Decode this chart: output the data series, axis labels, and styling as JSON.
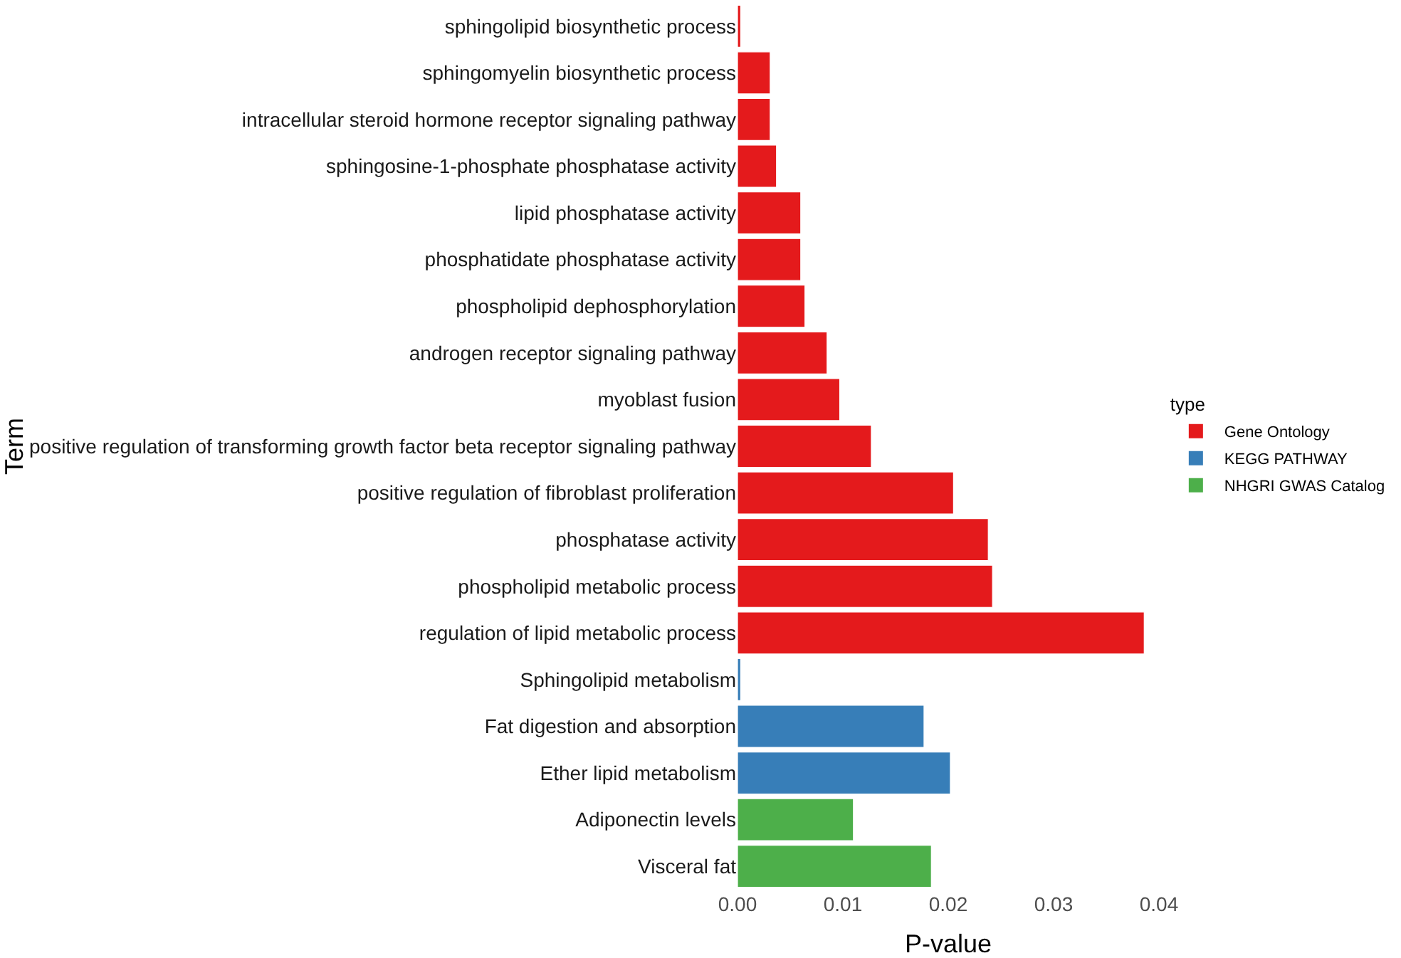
{
  "chart_data": {
    "type": "bar",
    "orientation": "horizontal",
    "xlabel": "P-value",
    "ylabel": "Term",
    "legend_title": "type",
    "legend": "right",
    "categories": [
      "sphingolipid biosynthetic process",
      "sphingomyelin biosynthetic process",
      "intracellular steroid hormone receptor signaling pathway",
      "sphingosine-1-phosphate phosphatase activity",
      "lipid phosphatase activity",
      "phosphatidate phosphatase activity",
      "phospholipid dephosphorylation",
      "androgen receptor signaling pathway",
      "myoblast fusion",
      "positive regulation of transforming growth factor beta receptor signaling pathway",
      "positive regulation of fibroblast proliferation",
      "phosphatase activity",
      "phospholipid metabolic process",
      "regulation of lipid metabolic process",
      "Sphingolipid metabolism",
      "Fat digestion and absorption",
      "Ether lipid metabolism",
      "Adiponectin levels",
      "Visceral fat"
    ],
    "series": [
      {
        "name": "Gene Ontology",
        "color": "#e41a1c",
        "values": [
          0.0003,
          0.0031,
          0.0031,
          0.0037,
          0.006,
          0.006,
          0.0064,
          0.0085,
          0.0097,
          0.0127,
          0.0205,
          0.0238,
          0.0242,
          0.0386,
          null,
          null,
          null,
          null,
          null
        ]
      },
      {
        "name": "KEGG PATHWAY",
        "color": "#377eb8",
        "values": [
          null,
          null,
          null,
          null,
          null,
          null,
          null,
          null,
          null,
          null,
          null,
          null,
          null,
          null,
          0.0003,
          0.0177,
          0.0202,
          null,
          null
        ]
      },
      {
        "name": "NHGRI GWAS Catalog",
        "color": "#4daf4a",
        "values": [
          null,
          null,
          null,
          null,
          null,
          null,
          null,
          null,
          null,
          null,
          null,
          null,
          null,
          null,
          null,
          null,
          null,
          0.011,
          0.0184
        ]
      }
    ],
    "xlim": [
      0,
      0.04
    ],
    "xticks": [
      {
        "value": 0,
        "label": "0.00"
      },
      {
        "value": 0.01,
        "label": "0.01"
      },
      {
        "value": 0.02,
        "label": "0.02"
      },
      {
        "value": 0.03,
        "label": "0.03"
      },
      {
        "value": 0.04,
        "label": "0.04"
      }
    ]
  }
}
